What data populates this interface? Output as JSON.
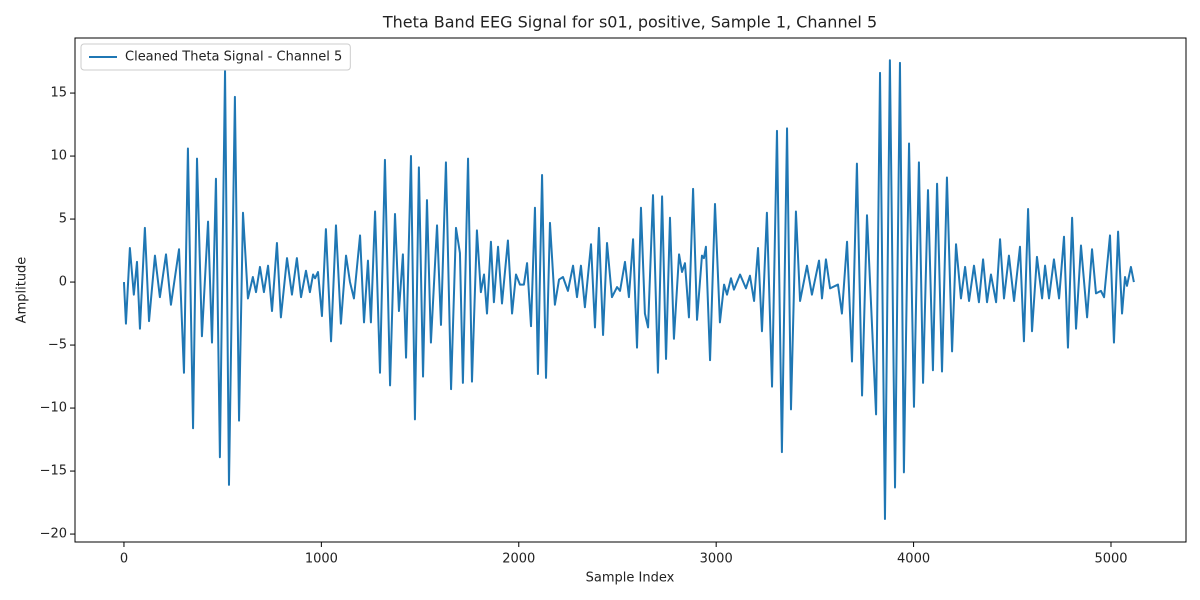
{
  "chart_data": {
    "type": "line",
    "title": "Theta Band EEG Signal for s01, positive, Sample 1, Channel 5",
    "xlabel": "Sample Index",
    "ylabel": "Amplitude",
    "legend": "upper left",
    "grid": false,
    "xlim": [
      -248,
      5380
    ],
    "ylim": [
      -20.63,
      19.37
    ],
    "xticks": [
      0,
      1000,
      2000,
      3000,
      4000,
      5000
    ],
    "yticks": [
      {
        "value": -20,
        "label": "−20"
      },
      {
        "value": -15,
        "label": "−15"
      },
      {
        "value": -10,
        "label": "−10"
      },
      {
        "value": -5,
        "label": "−5"
      },
      0,
      5,
      10,
      15
    ],
    "x": [
      0,
      10,
      30,
      50,
      66,
      81,
      106,
      127,
      157,
      182,
      213,
      238,
      279,
      304,
      324,
      350,
      370,
      395,
      426,
      446,
      466,
      486,
      512,
      532,
      562,
      583,
      603,
      628,
      653,
      669,
      689,
      709,
      730,
      750,
      775,
      795,
      826,
      851,
      876,
      897,
      922,
      942,
      958,
      968,
      983,
      1003,
      1023,
      1049,
      1074,
      1099,
      1125,
      1145,
      1165,
      1196,
      1216,
      1236,
      1251,
      1272,
      1297,
      1322,
      1348,
      1373,
      1393,
      1413,
      1429,
      1454,
      1474,
      1494,
      1515,
      1535,
      1555,
      1586,
      1606,
      1631,
      1657,
      1682,
      1702,
      1717,
      1743,
      1763,
      1788,
      1808,
      1824,
      1839,
      1859,
      1874,
      1895,
      1915,
      1945,
      1966,
      1986,
      2006,
      2026,
      2042,
      2062,
      2082,
      2097,
      2118,
      2138,
      2158,
      2183,
      2204,
      2224,
      2249,
      2275,
      2295,
      2315,
      2335,
      2366,
      2386,
      2406,
      2427,
      2447,
      2472,
      2498,
      2513,
      2538,
      2558,
      2579,
      2599,
      2619,
      2639,
      2655,
      2680,
      2705,
      2726,
      2746,
      2766,
      2786,
      2812,
      2827,
      2842,
      2862,
      2883,
      2903,
      2928,
      2938,
      2948,
      2969,
      2994,
      3019,
      3040,
      3055,
      3075,
      3090,
      3121,
      3151,
      3171,
      3192,
      3212,
      3232,
      3257,
      3283,
      3308,
      3333,
      3359,
      3379,
      3404,
      3425,
      3460,
      3485,
      3521,
      3536,
      3556,
      3577,
      3617,
      3637,
      3663,
      3688,
      3713,
      3739,
      3764,
      3810,
      3830,
      3855,
      3880,
      3906,
      3931,
      3951,
      3977,
      4002,
      4027,
      4048,
      4073,
      4098,
      4119,
      4144,
      4169,
      4195,
      4215,
      4240,
      4261,
      4281,
      4306,
      4331,
      4352,
      4372,
      4392,
      4418,
      4438,
      4458,
      4483,
      4509,
      4539,
      4559,
      4580,
      4600,
      4625,
      4651,
      4666,
      4686,
      4711,
      4737,
      4762,
      4782,
      4803,
      4823,
      4848,
      4879,
      4904,
      4924,
      4949,
      4965,
      4995,
      5015,
      5036,
      5056,
      5071,
      5081,
      5101,
      5116
    ],
    "series": [
      {
        "name": "Cleaned Theta Signal - Channel 5",
        "color": "#1f77b4",
        "values": [
          0,
          -3.3,
          2.7,
          -1,
          1.6,
          -3.7,
          4.3,
          -3.1,
          2.1,
          -1.2,
          2.2,
          -1.8,
          2.6,
          -7.2,
          10.6,
          -11.6,
          9.8,
          -4.3,
          4.8,
          -4.8,
          8.2,
          -13.9,
          16.8,
          -16.1,
          14.7,
          -11,
          5.5,
          -1.3,
          0.4,
          -0.8,
          1.2,
          -0.8,
          1.3,
          -2.3,
          3.1,
          -2.8,
          1.9,
          -1,
          1.9,
          -1.2,
          0.9,
          -0.8,
          0.6,
          0.3,
          0.8,
          -2.7,
          4.2,
          -4.7,
          4.5,
          -3.3,
          2.1,
          0,
          -1.3,
          3.7,
          -3.2,
          1.7,
          -3.2,
          5.6,
          -7.2,
          9.7,
          -8.2,
          5.4,
          -2.3,
          2.2,
          -6,
          10,
          -10.9,
          9.1,
          -7.5,
          6.5,
          -4.8,
          4.5,
          -3.4,
          9.5,
          -8.5,
          4.3,
          2.3,
          -8,
          9.8,
          -7.9,
          4.1,
          -0.8,
          0.6,
          -2.5,
          3.2,
          -1.6,
          2.8,
          -1.7,
          3.3,
          -2.5,
          0.6,
          -0.2,
          -0.2,
          1.5,
          -3.5,
          5.9,
          -7.3,
          8.5,
          -7.6,
          4.7,
          -1.8,
          0.2,
          0.4,
          -0.7,
          1.3,
          -1.2,
          1.3,
          -2,
          3,
          -3.6,
          4.3,
          -4.2,
          3.1,
          -1.2,
          -0.4,
          -0.7,
          1.6,
          -1.2,
          3.4,
          -5.2,
          5.9,
          -2.5,
          -3.6,
          6.9,
          -7.2,
          6.8,
          -6.1,
          5.1,
          -4.5,
          2.2,
          0.8,
          1.5,
          -2.8,
          7.4,
          -3,
          2.1,
          1.9,
          2.8,
          -6.2,
          6.2,
          -3.2,
          -0.2,
          -1,
          0.3,
          -0.6,
          0.6,
          -0.5,
          0.5,
          -1.5,
          2.7,
          -3.9,
          5.5,
          -8.3,
          12,
          -13.5,
          12.2,
          -10.1,
          5.6,
          -1.5,
          1.3,
          -1,
          1.7,
          -1.3,
          1.8,
          -0.5,
          -0.2,
          -2.5,
          3.2,
          -6.3,
          9.4,
          -9,
          5.3,
          -10.5,
          16.6,
          -18.8,
          17.6,
          -16.3,
          17.4,
          -15.1,
          11,
          -9.9,
          9.5,
          -8,
          7.3,
          -7,
          7.8,
          -7.1,
          8.3,
          -5.5,
          3,
          -1.3,
          1.2,
          -1.5,
          1.3,
          -1.6,
          1.8,
          -1.6,
          0.6,
          -1.6,
          3.4,
          -1.3,
          2.1,
          -1.5,
          2.8,
          -4.7,
          5.8,
          -3.9,
          2,
          -1.3,
          1.3,
          -1.3,
          1.8,
          -1.3,
          3.6,
          -5.2,
          5.1,
          -3.7,
          2.9,
          -2.8,
          2.6,
          -0.9,
          -0.7,
          -1.2,
          3.7,
          -4.8,
          4,
          -2.5,
          0.4,
          -0.3,
          1.2,
          0
        ]
      }
    ]
  }
}
